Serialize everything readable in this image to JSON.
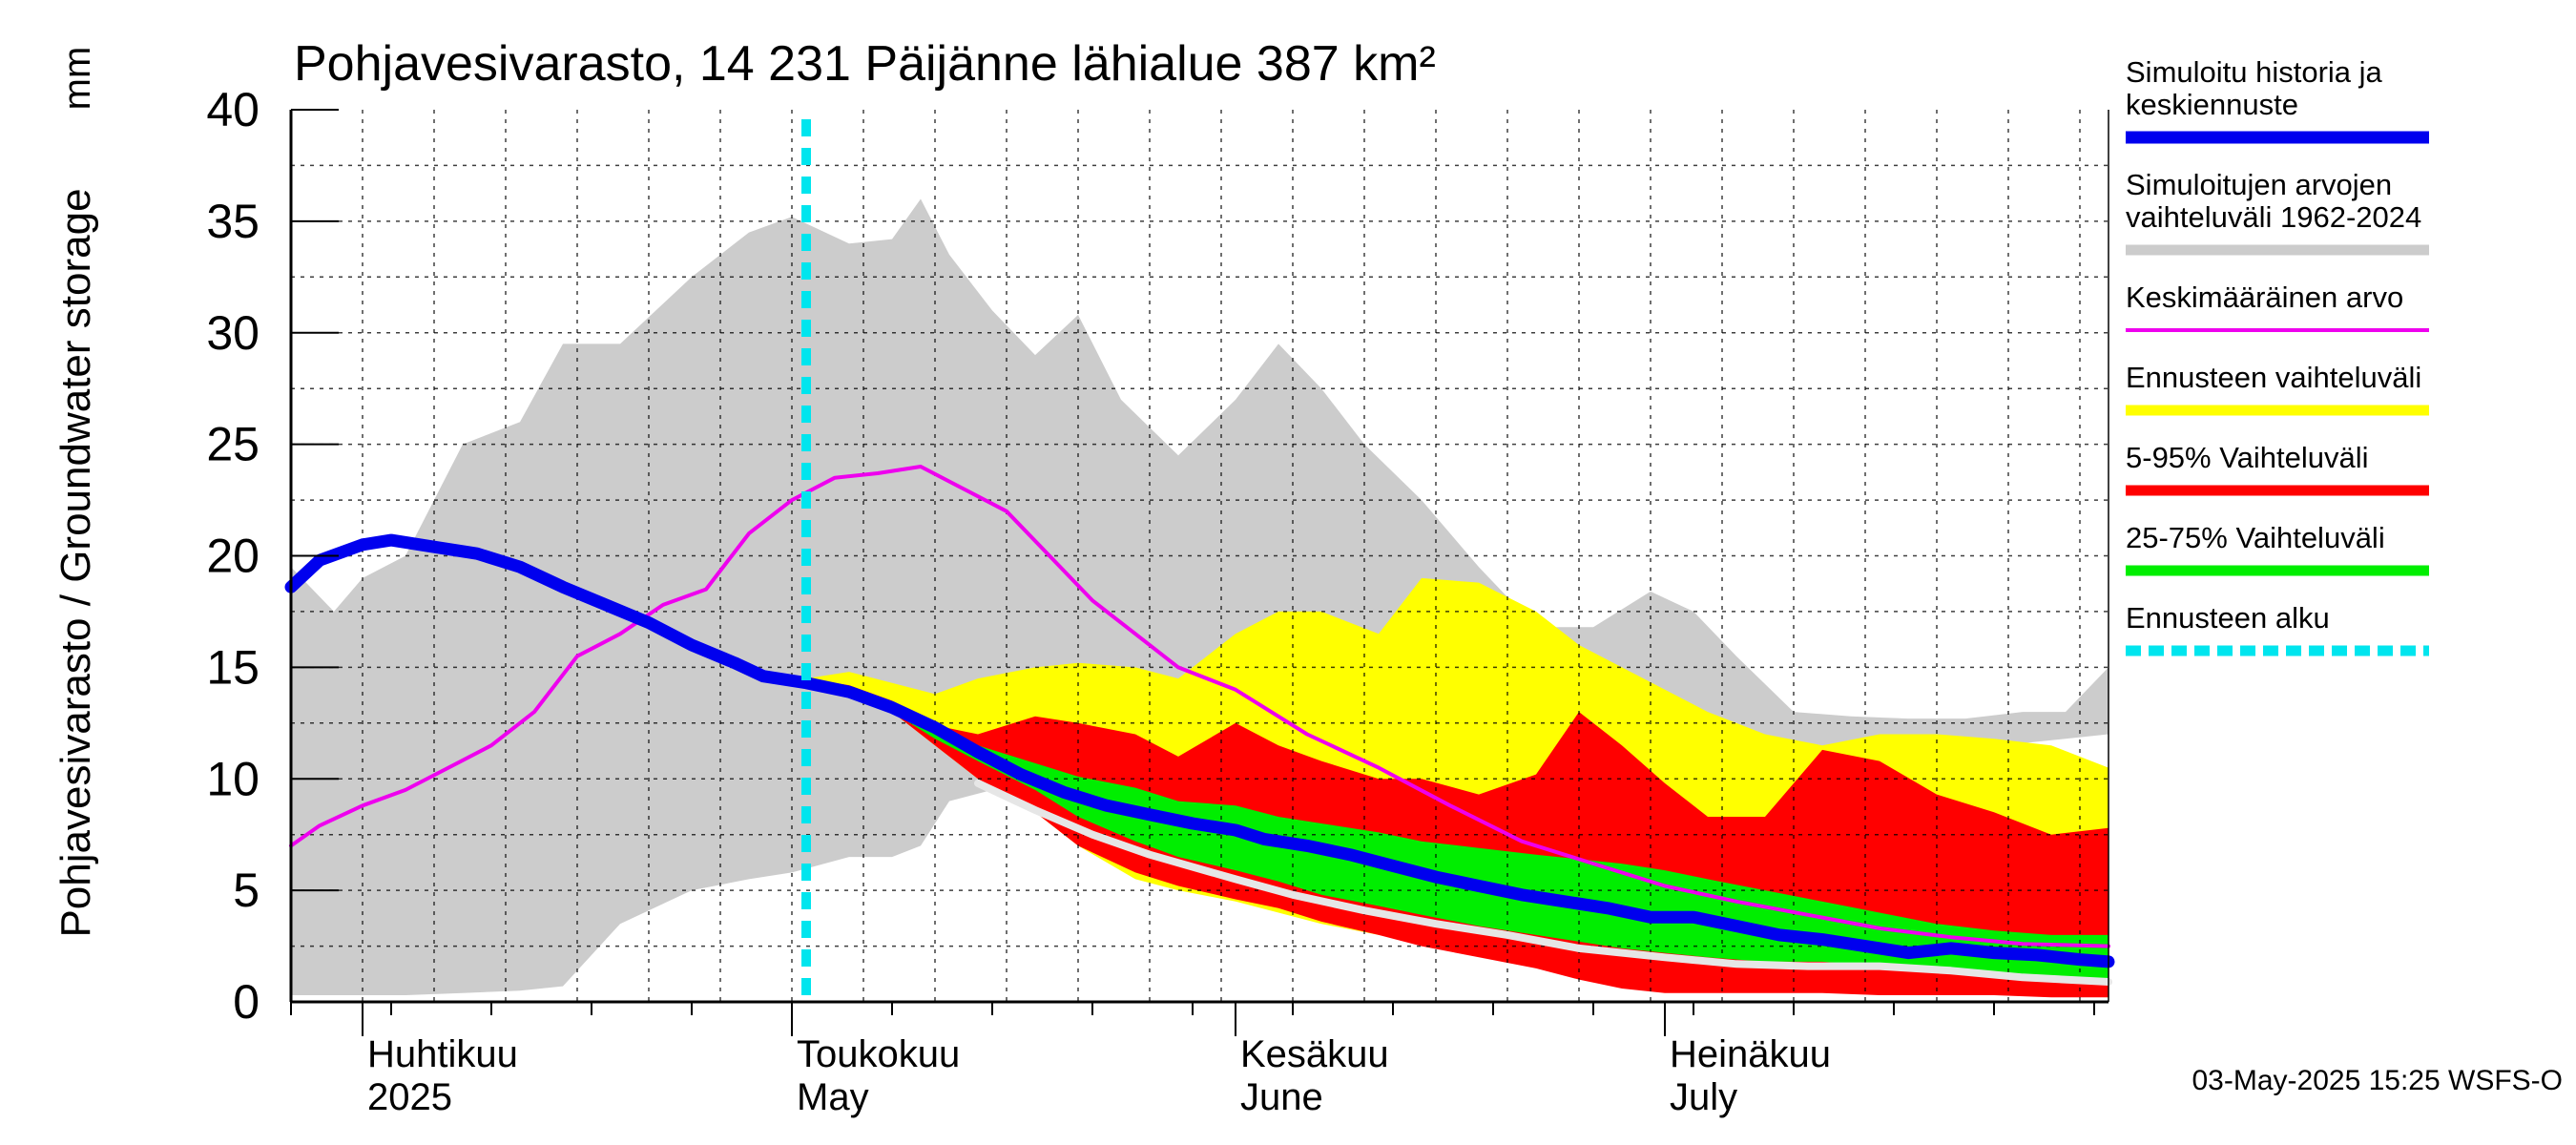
{
  "chart_data": {
    "type": "area",
    "title": "Pohjavesivarasto, 14 231 Päijänne lähialue 387 km²",
    "ylabel": "Pohjavesivarasto / Groundwater storage",
    "yunit": "mm",
    "ylim": [
      0,
      40
    ],
    "yticks": [
      "0",
      "5",
      "10",
      "15",
      "20",
      "25",
      "30",
      "35",
      "40"
    ],
    "xlim": [
      "2025-03-27",
      "2025-08-01"
    ],
    "x_ticks": [
      {
        "date": "2025-04-01",
        "line1": "Huhtikuu",
        "line2": "2025"
      },
      {
        "date": "2025-05-01",
        "line1": "Toukokuu",
        "line2": "May"
      },
      {
        "date": "2025-06-01",
        "line1": "Kesäkuu",
        "line2": "June"
      },
      {
        "date": "2025-07-01",
        "line1": "Heinäkuu",
        "line2": "July"
      }
    ],
    "forecast_start": "2025-05-02",
    "footer": "03-May-2025 15:25 WSFS-O",
    "grid": true,
    "legend_position": "right",
    "legend": [
      {
        "key": "history",
        "label": "Simuloitu historia ja keskiennuste",
        "lines": [
          "Simuloitu historia ja",
          "keskiennuste"
        ],
        "color": "#0000ee",
        "style": "thick-line"
      },
      {
        "key": "range",
        "label": "Simuloitujen arvojen vaihteluväli 1962-2024",
        "lines": [
          "Simuloitujen arvojen",
          "vaihteluväli 1962-2024"
        ],
        "color": "#cccccc",
        "style": "band"
      },
      {
        "key": "mean",
        "label": "Keskimääräinen arvo",
        "lines": [
          "Keskimääräinen arvo"
        ],
        "color": "#ee00ee",
        "style": "thin-line"
      },
      {
        "key": "fc_range",
        "label": "Ennusteen vaihteluväli",
        "lines": [
          "Ennusteen vaihteluväli"
        ],
        "color": "#ffff00",
        "style": "band"
      },
      {
        "key": "p5_95",
        "label": "5-95% Vaihteluväli",
        "lines": [
          "5-95% Vaihteluväli"
        ],
        "color": "#ff0000",
        "style": "band"
      },
      {
        "key": "p25_75",
        "label": "25-75% Vaihteluväli",
        "lines": [
          "25-75% Vaihteluväli"
        ],
        "color": "#00ee00",
        "style": "band"
      },
      {
        "key": "fc_start",
        "label": "Ennusteen alku",
        "lines": [
          "Ennusteen alku"
        ],
        "color": "#00e5ee",
        "style": "dashed-line"
      }
    ],
    "series": {
      "hist_range": {
        "dates": [
          "2025-03-27",
          "2025-03-30",
          "2025-04-01",
          "2025-04-04",
          "2025-04-08",
          "2025-04-12",
          "2025-04-15",
          "2025-04-19",
          "2025-04-24",
          "2025-04-28",
          "2025-05-01",
          "2025-05-05",
          "2025-05-08",
          "2025-05-10",
          "2025-05-12",
          "2025-05-15",
          "2025-05-18",
          "2025-05-21",
          "2025-05-24",
          "2025-05-28",
          "2025-06-01",
          "2025-06-04",
          "2025-06-07",
          "2025-06-10",
          "2025-06-14",
          "2025-06-18",
          "2025-06-22",
          "2025-06-26",
          "2025-06-30",
          "2025-07-03",
          "2025-07-06",
          "2025-07-10",
          "2025-07-14",
          "2025-07-18",
          "2025-07-22",
          "2025-07-26",
          "2025-07-29",
          "2025-08-01"
        ],
        "low": [
          0.3,
          0.3,
          0.3,
          0.3,
          0.4,
          0.5,
          0.7,
          3.5,
          5.0,
          5.5,
          5.8,
          6.5,
          6.5,
          7.0,
          9.0,
          9.5,
          9.8,
          10.0,
          10.2,
          10.5,
          10.5,
          10.5,
          10.6,
          10.7,
          10.8,
          10.9,
          11.0,
          11.0,
          11.0,
          11.0,
          11.0,
          11.0,
          11.0,
          11.2,
          11.4,
          11.6,
          11.8,
          12.0
        ],
        "high": [
          19.5,
          17.5,
          19.0,
          20.0,
          25.0,
          26.0,
          29.5,
          29.5,
          32.5,
          34.5,
          35.2,
          34.0,
          34.2,
          36.0,
          33.5,
          31.0,
          29.0,
          30.8,
          27.0,
          24.5,
          27.0,
          29.5,
          27.5,
          25.0,
          22.5,
          19.5,
          16.8,
          16.8,
          18.4,
          17.5,
          15.5,
          13.0,
          12.8,
          12.7,
          12.7,
          13.0,
          13.0,
          15.0
        ]
      },
      "fc_range": {
        "dates": [
          "2025-05-02",
          "2025-05-05",
          "2025-05-08",
          "2025-05-11",
          "2025-05-14",
          "2025-05-18",
          "2025-05-21",
          "2025-05-25",
          "2025-05-28",
          "2025-06-01",
          "2025-06-04",
          "2025-06-07",
          "2025-06-11",
          "2025-06-14",
          "2025-06-18",
          "2025-06-22",
          "2025-06-25",
          "2025-06-28",
          "2025-07-01",
          "2025-07-04",
          "2025-07-08",
          "2025-07-12",
          "2025-07-16",
          "2025-07-20",
          "2025-07-24",
          "2025-07-28",
          "2025-08-01"
        ],
        "low": [
          14.5,
          14.0,
          13.0,
          11.5,
          10.0,
          8.5,
          7.0,
          5.5,
          5.0,
          4.5,
          4.0,
          3.5,
          3.0,
          2.7,
          2.2,
          1.9,
          1.5,
          1.2,
          1.0,
          0.8,
          0.6,
          0.6,
          0.5,
          0.4,
          0.3,
          0.3,
          0.2
        ],
        "high": [
          14.5,
          14.8,
          14.3,
          13.8,
          14.5,
          15.0,
          15.2,
          15.0,
          14.5,
          16.5,
          17.5,
          17.5,
          16.5,
          19.0,
          18.8,
          17.5,
          16.0,
          15.0,
          14.0,
          13.0,
          12.0,
          11.5,
          12.0,
          12.0,
          11.8,
          11.5,
          10.5
        ]
      },
      "p5_95": {
        "dates": [
          "2025-05-02",
          "2025-05-05",
          "2025-05-08",
          "2025-05-11",
          "2025-05-14",
          "2025-05-18",
          "2025-05-21",
          "2025-05-25",
          "2025-05-28",
          "2025-06-01",
          "2025-06-04",
          "2025-06-07",
          "2025-06-11",
          "2025-06-14",
          "2025-06-18",
          "2025-06-22",
          "2025-06-25",
          "2025-06-28",
          "2025-07-01",
          "2025-07-04",
          "2025-07-08",
          "2025-07-12",
          "2025-07-16",
          "2025-07-20",
          "2025-07-24",
          "2025-07-28",
          "2025-08-01"
        ],
        "low": [
          14.5,
          14.0,
          13.0,
          11.5,
          10.0,
          8.5,
          7.0,
          5.8,
          5.2,
          4.6,
          4.2,
          3.6,
          3.0,
          2.5,
          2.0,
          1.5,
          1.0,
          0.6,
          0.4,
          0.4,
          0.4,
          0.4,
          0.3,
          0.3,
          0.3,
          0.2,
          0.2
        ],
        "high": [
          14.5,
          14.2,
          13.5,
          12.4,
          12.0,
          12.8,
          12.5,
          12.0,
          11.0,
          12.5,
          11.5,
          10.8,
          10.0,
          10.0,
          9.3,
          10.2,
          13.0,
          11.5,
          9.8,
          8.3,
          8.3,
          11.3,
          10.8,
          9.3,
          8.5,
          7.5,
          7.8
        ]
      },
      "p25_75": {
        "dates": [
          "2025-05-02",
          "2025-05-05",
          "2025-05-08",
          "2025-05-11",
          "2025-05-14",
          "2025-05-18",
          "2025-05-21",
          "2025-05-25",
          "2025-05-28",
          "2025-06-01",
          "2025-06-04",
          "2025-06-07",
          "2025-06-11",
          "2025-06-14",
          "2025-06-18",
          "2025-06-22",
          "2025-06-25",
          "2025-06-28",
          "2025-07-01",
          "2025-07-04",
          "2025-07-08",
          "2025-07-12",
          "2025-07-16",
          "2025-07-20",
          "2025-07-24",
          "2025-07-28",
          "2025-08-01"
        ],
        "low": [
          14.5,
          14.0,
          13.0,
          11.8,
          10.8,
          9.5,
          8.3,
          7.2,
          6.5,
          5.9,
          5.4,
          4.8,
          4.3,
          3.9,
          3.4,
          3.0,
          2.7,
          2.4,
          2.2,
          2.0,
          1.8,
          1.8,
          1.6,
          1.4,
          1.3,
          1.1,
          1.0
        ],
        "high": [
          14.5,
          14.1,
          13.2,
          12.3,
          11.5,
          10.7,
          10.1,
          9.6,
          9.0,
          8.8,
          8.3,
          8.0,
          7.6,
          7.2,
          6.9,
          6.6,
          6.4,
          6.2,
          5.9,
          5.5,
          5.0,
          4.5,
          4.0,
          3.5,
          3.2,
          3.0,
          3.0
        ]
      },
      "median": {
        "dates": [
          "2025-05-14",
          "2025-05-18",
          "2025-05-22",
          "2025-05-26",
          "2025-06-01",
          "2025-06-05",
          "2025-06-10",
          "2025-06-15",
          "2025-06-20",
          "2025-06-25",
          "2025-07-01",
          "2025-07-06",
          "2025-07-11",
          "2025-07-16",
          "2025-07-21",
          "2025-07-26",
          "2025-08-01"
        ],
        "values": [
          9.8,
          8.6,
          7.5,
          6.6,
          5.5,
          4.8,
          4.1,
          3.5,
          3.0,
          2.4,
          2.0,
          1.7,
          1.6,
          1.6,
          1.4,
          1.1,
          0.9
        ]
      },
      "history": {
        "dates": [
          "2025-03-27",
          "2025-03-29",
          "2025-04-01",
          "2025-04-03",
          "2025-04-06",
          "2025-04-09",
          "2025-04-12",
          "2025-04-15",
          "2025-04-18",
          "2025-04-21",
          "2025-04-24",
          "2025-04-27",
          "2025-04-29",
          "2025-05-02",
          "2025-05-05",
          "2025-05-08",
          "2025-05-11",
          "2025-05-14",
          "2025-05-17",
          "2025-05-20",
          "2025-05-23",
          "2025-05-26",
          "2025-05-29",
          "2025-06-01",
          "2025-06-03",
          "2025-06-06",
          "2025-06-09",
          "2025-06-12",
          "2025-06-15",
          "2025-06-18",
          "2025-06-21",
          "2025-06-24",
          "2025-06-27",
          "2025-06-30",
          "2025-07-03",
          "2025-07-06",
          "2025-07-09",
          "2025-07-12",
          "2025-07-15",
          "2025-07-18",
          "2025-07-21",
          "2025-07-24",
          "2025-07-27",
          "2025-07-30",
          "2025-08-01"
        ],
        "values": [
          18.6,
          19.8,
          20.5,
          20.7,
          20.4,
          20.1,
          19.5,
          18.6,
          17.8,
          17.0,
          16.0,
          15.2,
          14.6,
          14.3,
          13.9,
          13.2,
          12.3,
          11.2,
          10.2,
          9.4,
          8.8,
          8.4,
          8.0,
          7.7,
          7.3,
          7.0,
          6.6,
          6.1,
          5.6,
          5.2,
          4.8,
          4.5,
          4.2,
          3.8,
          3.8,
          3.4,
          3.0,
          2.8,
          2.5,
          2.2,
          2.4,
          2.2,
          2.1,
          1.9,
          1.8
        ]
      },
      "mean": {
        "dates": [
          "2025-03-27",
          "2025-03-29",
          "2025-04-01",
          "2025-04-04",
          "2025-04-07",
          "2025-04-10",
          "2025-04-13",
          "2025-04-16",
          "2025-04-19",
          "2025-04-22",
          "2025-04-25",
          "2025-04-28",
          "2025-05-01",
          "2025-05-04",
          "2025-05-07",
          "2025-05-10",
          "2025-05-13",
          "2025-05-16",
          "2025-05-19",
          "2025-05-22",
          "2025-05-25",
          "2025-05-28",
          "2025-06-01",
          "2025-06-06",
          "2025-06-11",
          "2025-06-16",
          "2025-06-21",
          "2025-06-26",
          "2025-07-01",
          "2025-07-06",
          "2025-07-11",
          "2025-07-16",
          "2025-07-21",
          "2025-07-26",
          "2025-08-01"
        ],
        "values": [
          7.0,
          7.9,
          8.8,
          9.5,
          10.5,
          11.5,
          13.0,
          15.5,
          16.5,
          17.8,
          18.5,
          21.0,
          22.5,
          23.5,
          23.7,
          24.0,
          23.0,
          22.0,
          20.0,
          18.0,
          16.5,
          15.0,
          14.0,
          12.0,
          10.5,
          8.8,
          7.2,
          6.2,
          5.2,
          4.5,
          3.9,
          3.3,
          2.9,
          2.6,
          2.5
        ]
      }
    }
  }
}
